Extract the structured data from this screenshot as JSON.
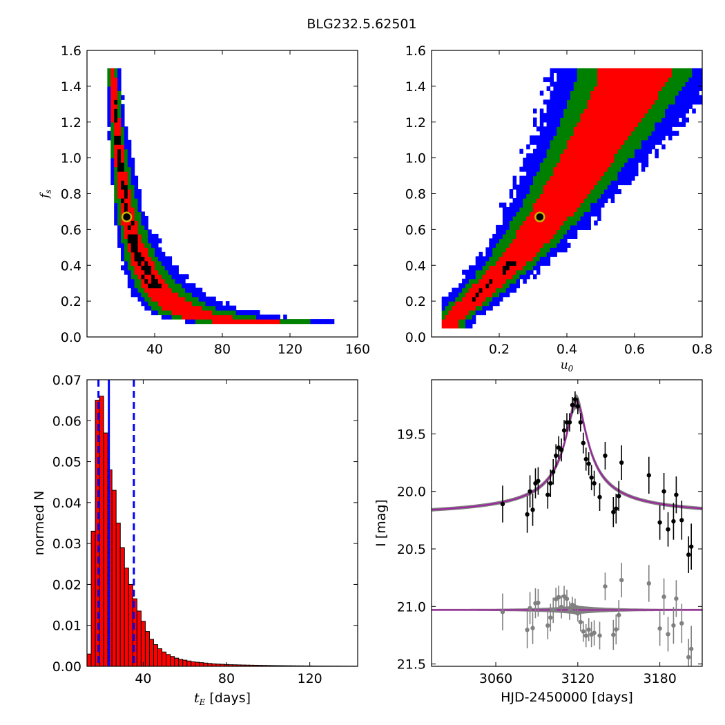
{
  "figure": {
    "title": "BLG232.5.62501"
  },
  "chart_data": [
    {
      "type": "heatmap",
      "panel": "top-left",
      "xlabel": "",
      "ylabel": "f_s",
      "xlim": [
        0,
        160
      ],
      "ylim": [
        0.0,
        1.6
      ],
      "xticks": [
        "40",
        "80",
        "120",
        "160"
      ],
      "yticks": [
        "0.0",
        "0.2",
        "0.4",
        "0.6",
        "0.8",
        "1.0",
        "1.2",
        "1.4",
        "1.6"
      ],
      "levels": [
        {
          "color": "#0000ff",
          "meaning": "outer"
        },
        {
          "color": "#008000",
          "meaning": "middle"
        },
        {
          "color": "#ff0000",
          "meaning": "inner"
        },
        {
          "color": "#000000",
          "meaning": "core"
        }
      ],
      "best_fit": {
        "x": 23.5,
        "y": 0.67
      },
      "ridge": [
        [
          15,
          1.5
        ],
        [
          17,
          1.2
        ],
        [
          19,
          1.0
        ],
        [
          21,
          0.85
        ],
        [
          23,
          0.72
        ],
        [
          25,
          0.62
        ],
        [
          28,
          0.52
        ],
        [
          31,
          0.44
        ],
        [
          35,
          0.36
        ],
        [
          40,
          0.28
        ],
        [
          46,
          0.22
        ],
        [
          53,
          0.17
        ],
        [
          60,
          0.14
        ],
        [
          70,
          0.11
        ],
        [
          85,
          0.09
        ],
        [
          100,
          0.085
        ],
        [
          120,
          0.08
        ],
        [
          140,
          0.075
        ]
      ]
    },
    {
      "type": "heatmap",
      "panel": "top-right",
      "xlabel": "u_0",
      "ylabel": "",
      "xlim": [
        0.0,
        0.8
      ],
      "ylim": [
        0.0,
        1.6
      ],
      "xticks": [
        "0.2",
        "0.4",
        "0.6",
        "0.8"
      ],
      "yticks": [
        "0.0",
        "0.2",
        "0.4",
        "0.6",
        "0.8",
        "1.0",
        "1.2",
        "1.4",
        "1.6"
      ],
      "best_fit": {
        "x": 0.32,
        "y": 0.67
      },
      "ridge": [
        [
          0.05,
          0.08
        ],
        [
          0.1,
          0.17
        ],
        [
          0.15,
          0.26
        ],
        [
          0.2,
          0.35
        ],
        [
          0.25,
          0.44
        ],
        [
          0.3,
          0.56
        ],
        [
          0.35,
          0.68
        ],
        [
          0.4,
          0.82
        ],
        [
          0.45,
          0.97
        ],
        [
          0.5,
          1.12
        ],
        [
          0.55,
          1.28
        ],
        [
          0.6,
          1.45
        ]
      ]
    },
    {
      "type": "bar",
      "panel": "bottom-left",
      "xlabel": "t_E [days]",
      "ylabel": "normed N",
      "xlim": [
        13,
        143
      ],
      "ylim": [
        0.0,
        0.07
      ],
      "xticks": [
        "40",
        "80",
        "120"
      ],
      "yticks": [
        "0.00",
        "0.01",
        "0.02",
        "0.03",
        "0.04",
        "0.05",
        "0.06",
        "0.07"
      ],
      "bin_width": 2,
      "bin_start": 13,
      "values": [
        0.003,
        0.033,
        0.065,
        0.066,
        0.057,
        0.048,
        0.043,
        0.035,
        0.029,
        0.024,
        0.02,
        0.0165,
        0.0135,
        0.011,
        0.0085,
        0.0066,
        0.0053,
        0.0043,
        0.0035,
        0.0029,
        0.0024,
        0.002,
        0.0017,
        0.0015,
        0.0013,
        0.0011,
        0.001,
        0.0009,
        0.0008,
        0.0007,
        0.0006,
        0.00055,
        0.0005,
        0.00045,
        0.0004,
        0.00038,
        0.00035,
        0.00032,
        0.0003,
        0.00028,
        0.00026,
        0.00024,
        0.00022,
        0.0002,
        0.00018,
        0.00017,
        0.00016,
        0.00015,
        0.00014,
        0.00013,
        0.00012,
        0.00011,
        0.0001,
        0.0001,
        9e-05,
        8e-05,
        8e-05,
        7e-05,
        7e-05,
        6e-05,
        6e-05,
        5e-05,
        5e-05,
        4e-05,
        4e-05
      ],
      "median": 23.5,
      "interval": [
        18.5,
        35.5
      ]
    },
    {
      "type": "line",
      "panel": "bottom-right",
      "xlabel": "HJD-2450000 [days]",
      "ylabel": "I [mag]",
      "xlim": [
        3013,
        3211
      ],
      "ylim": [
        21.52,
        19.03
      ],
      "xticks": [
        "3060",
        "3120",
        "3180"
      ],
      "yticks": [
        "19.5",
        "20.0",
        "20.5",
        "21.0",
        "21.5"
      ],
      "model": {
        "t0": 3119,
        "base": 20.23,
        "peak": 19.22,
        "tau": 7.4
      },
      "residual_offset": 21.03,
      "series": [
        {
          "name": "",
          "color": "#000000",
          "points": [
            [
              3065,
              20.11,
              0.16
            ],
            [
              3083,
              20.2,
              0.16
            ],
            [
              3085,
              20.0,
              0.14
            ],
            [
              3087,
              20.16,
              0.14
            ],
            [
              3089,
              19.93,
              0.13
            ],
            [
              3091,
              19.91,
              0.12
            ],
            [
              3098,
              20.03,
              0.12
            ],
            [
              3100,
              19.93,
              0.12
            ],
            [
              3102,
              19.83,
              0.11
            ],
            [
              3104,
              19.69,
              0.1
            ],
            [
              3106,
              19.62,
              0.1
            ],
            [
              3108,
              19.64,
              0.1
            ],
            [
              3110,
              19.47,
              0.09
            ],
            [
              3112,
              19.4,
              0.08
            ],
            [
              3114,
              19.4,
              0.08
            ],
            [
              3116,
              19.25,
              0.07
            ],
            [
              3118,
              19.2,
              0.07
            ],
            [
              3120,
              19.26,
              0.07
            ],
            [
              3122,
              19.4,
              0.08
            ],
            [
              3124,
              19.58,
              0.09
            ],
            [
              3126,
              19.72,
              0.1
            ],
            [
              3128,
              19.76,
              0.1
            ],
            [
              3130,
              19.88,
              0.11
            ],
            [
              3132,
              19.93,
              0.11
            ],
            [
              3136,
              20.05,
              0.12
            ],
            [
              3140,
              19.69,
              0.12
            ],
            [
              3146,
              20.18,
              0.13
            ],
            [
              3148,
              20.15,
              0.13
            ],
            [
              3150,
              20.04,
              0.13
            ],
            [
              3152,
              19.75,
              0.15
            ],
            [
              3172,
              19.86,
              0.16
            ],
            [
              3180,
              20.27,
              0.15
            ],
            [
              3183,
              20.0,
              0.16
            ],
            [
              3186,
              20.33,
              0.15
            ],
            [
              3190,
              20.26,
              0.16
            ],
            [
              3192,
              20.03,
              0.16
            ],
            [
              3196,
              20.25,
              0.17
            ],
            [
              3201,
              20.55,
              0.16
            ],
            [
              3203,
              20.48,
              0.2
            ]
          ]
        },
        {
          "name": "",
          "color": "#808080",
          "role": "residuals"
        }
      ]
    }
  ]
}
